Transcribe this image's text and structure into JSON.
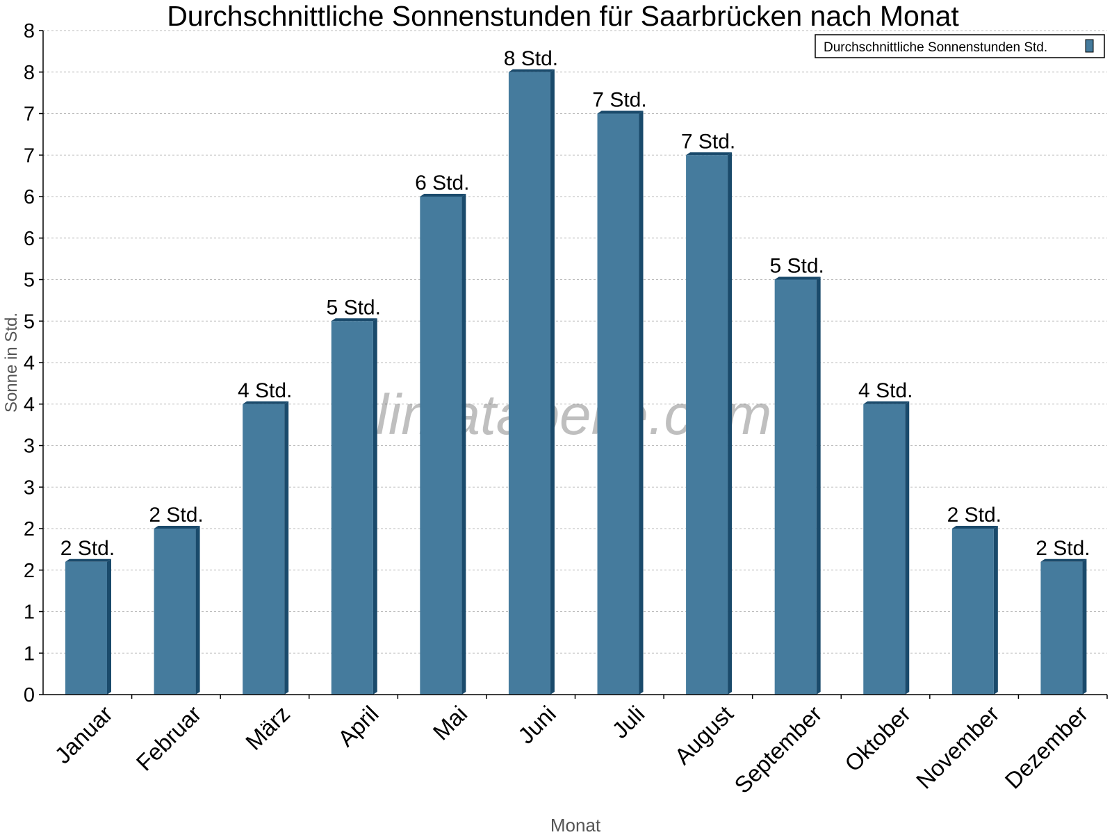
{
  "chart_data": {
    "type": "bar",
    "title": "Durchschnittliche Sonnenstunden für Saarbrücken nach Monat",
    "xlabel": "Monat",
    "ylabel": "Sonne in Std.",
    "ylim": [
      0,
      8
    ],
    "ytick_values": [
      0,
      0.5,
      1,
      1.5,
      2,
      2.5,
      3,
      3.5,
      4,
      4.5,
      5,
      5.5,
      6,
      6.5,
      7,
      7.5,
      8
    ],
    "ytick_labels": [
      "0",
      "1",
      "1",
      "2",
      "2",
      "3",
      "3",
      "4",
      "4",
      "5",
      "5",
      "6",
      "6",
      "7",
      "7",
      "8",
      "8"
    ],
    "categories": [
      "Januar",
      "Februar",
      "März",
      "April",
      "Mai",
      "Juni",
      "Juli",
      "August",
      "September",
      "Oktober",
      "November",
      "Dezember"
    ],
    "series": [
      {
        "name": "Durchschnittliche Sonnenstunden Std.",
        "values": [
          1.6,
          2.0,
          3.5,
          4.5,
          6.0,
          7.5,
          7.0,
          6.5,
          5.0,
          3.5,
          2.0,
          1.6
        ],
        "data_labels": [
          "2 Std.",
          "2 Std.",
          "4 Std.",
          "5 Std.",
          "6 Std.",
          "8 Std.",
          "7 Std.",
          "7 Std.",
          "5 Std.",
          "4 Std.",
          "2 Std.",
          "2 Std."
        ],
        "color": "#457b9d",
        "side_color": "#1a4a6b"
      }
    ],
    "grid": true,
    "legend_position": "top-right",
    "watermark": "klimatabelle.com"
  }
}
